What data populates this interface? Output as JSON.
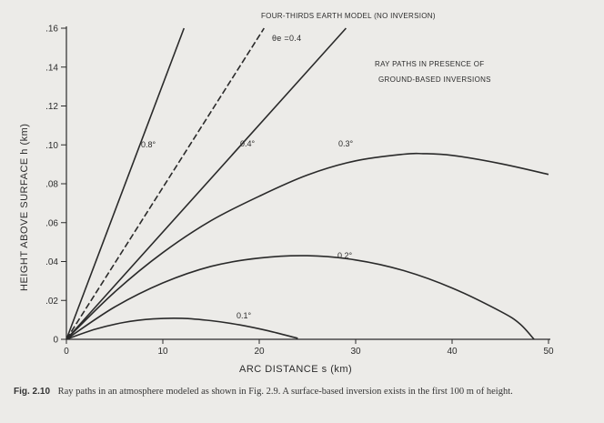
{
  "caption": {
    "figure_number": "Fig. 2.10",
    "text": "Ray paths in an atmosphere modeled as shown in Fig. 2.9. A surface-based inversion exists in the first 100 m of height."
  },
  "chart_data": {
    "type": "line",
    "xlabel": "ARC DISTANCE s (km)",
    "ylabel": "HEIGHT ABOVE SURFACE h (km)",
    "xlim": [
      0,
      50
    ],
    "ylim": [
      0,
      0.16
    ],
    "x_ticks": [
      0,
      10,
      20,
      30,
      40,
      50
    ],
    "x_tick_labels": [
      "0",
      "10",
      "20",
      "30",
      "40",
      "50"
    ],
    "y_ticks": [
      0,
      0.02,
      0.04,
      0.06,
      0.08,
      0.1,
      0.12,
      0.14,
      0.16
    ],
    "y_tick_labels": [
      "0",
      ".02",
      ".04",
      ".06",
      ".08",
      ".10",
      ".12",
      ".14",
      ".16"
    ],
    "grid": false,
    "annotations": {
      "four_thirds_title": "FOUR-THIRDS EARTH MODEL (NO INVERSION)",
      "theta_label": "θe =0.4",
      "inversion_title_line1": "RAY PATHS IN PRESENCE OF",
      "inversion_title_line2": "GROUND-BASED INVERSIONS"
    },
    "series": [
      {
        "label": "0.8°",
        "style": "solid",
        "x": [
          0,
          12.2
        ],
        "y": [
          0,
          0.16
        ]
      },
      {
        "label": "",
        "style": "dashed",
        "x": [
          0,
          20.5
        ],
        "y": [
          0,
          0.16
        ]
      },
      {
        "label": "0.4°",
        "style": "solid",
        "x": [
          0,
          29
        ],
        "y": [
          0,
          0.16
        ]
      },
      {
        "label": "0.3°",
        "style": "solid",
        "x": [
          0,
          5,
          10,
          15,
          20,
          25,
          30,
          35,
          37,
          40,
          45,
          50
        ],
        "y": [
          0,
          0.0243,
          0.0446,
          0.061,
          0.0736,
          0.0845,
          0.0918,
          0.0952,
          0.0955,
          0.0946,
          0.0904,
          0.0848
        ]
      },
      {
        "label": "0.2°",
        "style": "solid",
        "x": [
          0,
          5,
          10,
          15,
          20,
          25,
          30,
          35,
          40,
          45,
          47,
          48.5
        ],
        "y": [
          0,
          0.0166,
          0.029,
          0.0375,
          0.0418,
          0.043,
          0.0408,
          0.0353,
          0.0264,
          0.0144,
          0.0081,
          0
        ]
      },
      {
        "label": "0.1°",
        "style": "solid",
        "x": [
          0,
          3,
          6,
          9,
          12,
          15,
          18,
          21,
          24
        ],
        "y": [
          0,
          0.0052,
          0.0087,
          0.0105,
          0.0108,
          0.0096,
          0.0074,
          0.0043,
          0.0005
        ]
      }
    ]
  }
}
